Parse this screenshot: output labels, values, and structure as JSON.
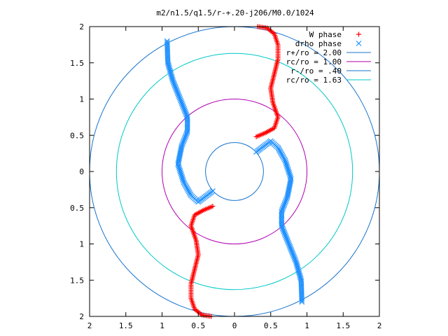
{
  "title": "m2/n1.5/q1.5/r-+.20-j206/M0.0/1024",
  "chart_data": {
    "type": "scatter",
    "title": "m2/n1.5/q1.5/r-+.20-j206/M0.0/1024",
    "xlim": [
      -2,
      2
    ],
    "ylim": [
      -2,
      2
    ],
    "x_tick_labels": [
      "2",
      "1.5",
      "1",
      "0.5",
      "0",
      "0.5",
      "1",
      "1.5",
      "2"
    ],
    "y_tick_labels": [
      "2",
      "1.5",
      "1",
      "0.5",
      "0",
      "0.5",
      "1",
      "1.5",
      "2"
    ],
    "x_ticks": [
      -2,
      -1.5,
      -1,
      -0.5,
      0,
      0.5,
      1,
      1.5,
      2
    ],
    "y_ticks": [
      2,
      1.5,
      1,
      0.5,
      0,
      -0.5,
      -1,
      -1.5,
      -2
    ],
    "grid": false,
    "legend_position": "top-right",
    "legend": [
      {
        "label": "W phase",
        "kind": "points",
        "marker": "+",
        "color": "#ff0000"
      },
      {
        "label": "drho phase",
        "kind": "points",
        "marker": "x",
        "color": "#1e90ff"
      },
      {
        "label": "r+/ro = 2.00",
        "kind": "line",
        "color": "#1874cd"
      },
      {
        "label": "rc/ro = 1.00",
        "kind": "line",
        "color": "#b000b0"
      },
      {
        "label": "r-/ro = .40",
        "kind": "line",
        "color": "#1874cd"
      },
      {
        "label": "rc/ro = 1.63",
        "kind": "line",
        "color": "#00c8c8"
      }
    ],
    "circles": [
      {
        "name": "r+/ro = 2.00",
        "radius": 2.0,
        "color": "#1874cd"
      },
      {
        "name": "rc/ro = 1.00",
        "radius": 1.0,
        "color": "#b000b0"
      },
      {
        "name": "r-/ro = .40",
        "radius": 0.4,
        "color": "#1874cd"
      },
      {
        "name": "rc/ro = 1.63",
        "radius": 1.63,
        "color": "#00c8c8"
      }
    ],
    "series": [
      {
        "name": "W phase",
        "color": "#ff0000",
        "marker": "+",
        "branches": [
          [
            [
              0.32,
              2.0
            ],
            [
              0.45,
              1.98
            ],
            [
              0.55,
              1.9
            ],
            [
              0.6,
              1.75
            ],
            [
              0.6,
              1.55
            ],
            [
              0.55,
              1.35
            ],
            [
              0.5,
              1.15
            ],
            [
              0.53,
              0.95
            ],
            [
              0.6,
              0.75
            ],
            [
              0.55,
              0.6
            ],
            [
              0.42,
              0.53
            ],
            [
              0.3,
              0.48
            ]
          ],
          [
            [
              -0.32,
              -2.0
            ],
            [
              -0.45,
              -1.98
            ],
            [
              -0.55,
              -1.9
            ],
            [
              -0.6,
              -1.75
            ],
            [
              -0.6,
              -1.55
            ],
            [
              -0.55,
              -1.35
            ],
            [
              -0.5,
              -1.15
            ],
            [
              -0.53,
              -0.95
            ],
            [
              -0.6,
              -0.75
            ],
            [
              -0.55,
              -0.6
            ],
            [
              -0.42,
              -0.53
            ],
            [
              -0.3,
              -0.48
            ]
          ]
        ]
      },
      {
        "name": "drho phase",
        "color": "#1e90ff",
        "marker": "x",
        "branches": [
          [
            [
              -0.93,
              1.8
            ],
            [
              -0.92,
              1.5
            ],
            [
              -0.85,
              1.25
            ],
            [
              -0.75,
              1.0
            ],
            [
              -0.65,
              0.75
            ],
            [
              -0.65,
              0.55
            ],
            [
              -0.73,
              0.35
            ],
            [
              -0.78,
              0.1
            ],
            [
              -0.7,
              -0.15
            ],
            [
              -0.6,
              -0.33
            ],
            [
              -0.5,
              -0.42
            ],
            [
              -0.3,
              -0.27
            ]
          ],
          [
            [
              0.93,
              -1.8
            ],
            [
              0.92,
              -1.5
            ],
            [
              0.85,
              -1.25
            ],
            [
              0.75,
              -1.0
            ],
            [
              0.65,
              -0.75
            ],
            [
              0.65,
              -0.55
            ],
            [
              0.73,
              -0.35
            ],
            [
              0.78,
              -0.1
            ],
            [
              0.7,
              0.15
            ],
            [
              0.6,
              0.33
            ],
            [
              0.5,
              0.42
            ],
            [
              0.3,
              0.27
            ]
          ]
        ]
      }
    ]
  }
}
